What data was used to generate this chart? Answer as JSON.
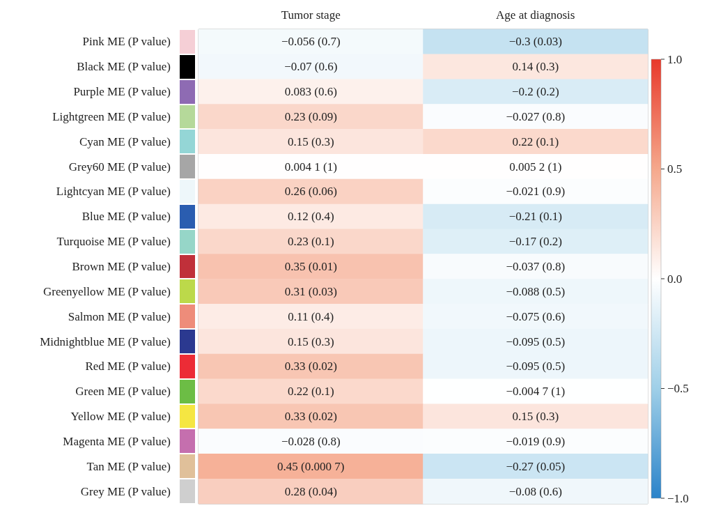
{
  "chart_data": {
    "type": "heatmap",
    "categories": [
      "Tumor stage",
      "Age at diagnosis"
    ],
    "y_categories": [
      "Pink ME (P value)",
      "Black ME (P value)",
      "Purple ME (P value)",
      "Lightgreen ME (P value)",
      "Cyan ME (P value)",
      "Grey60 ME (P value)",
      "Lightcyan ME (P value)",
      "Blue ME (P value)",
      "Turquoise ME (P value)",
      "Brown ME (P value)",
      "Greenyellow ME (P value)",
      "Salmon ME (P value)",
      "Midnightblue ME (P value)",
      "Red ME (P value)",
      "Green ME (P value)",
      "Yellow ME (P value)",
      "Magenta ME (P value)",
      "Tan ME (P value)",
      "Grey ME (P value)"
    ],
    "colors": [
      "#f5cfd6",
      "#000000",
      "#8e6bb3",
      "#b5d99a",
      "#94d6d6",
      "#a6a6a6",
      "#eef7fa",
      "#2a5db0",
      "#96d6c8",
      "#c0303a",
      "#bcd94a",
      "#ee8c7a",
      "#2b3990",
      "#ec2c36",
      "#6cbd45",
      "#f5e642",
      "#c56fae",
      "#e0c09a",
      "#cfcfcf"
    ],
    "cells": [
      [
        -0.056,
        -0.3
      ],
      [
        -0.07,
        0.14
      ],
      [
        0.083,
        -0.2
      ],
      [
        0.23,
        -0.027
      ],
      [
        0.15,
        0.22
      ],
      [
        0.0041,
        0.0052
      ],
      [
        0.26,
        -0.021
      ],
      [
        0.12,
        -0.21
      ],
      [
        0.23,
        -0.17
      ],
      [
        0.35,
        -0.037
      ],
      [
        0.31,
        -0.088
      ],
      [
        0.11,
        -0.075
      ],
      [
        0.15,
        -0.095
      ],
      [
        0.33,
        -0.095
      ],
      [
        0.22,
        -0.0047
      ],
      [
        0.33,
        0.15
      ],
      [
        -0.028,
        -0.019
      ],
      [
        0.45,
        -0.27
      ],
      [
        0.28,
        -0.08
      ]
    ],
    "cell_labels": [
      [
        "−0.056 (0.7)",
        "−0.3 (0.03)"
      ],
      [
        "−0.07 (0.6)",
        "0.14 (0.3)"
      ],
      [
        "0.083 (0.6)",
        "−0.2 (0.2)"
      ],
      [
        "0.23 (0.09)",
        "−0.027 (0.8)"
      ],
      [
        "0.15 (0.3)",
        "0.22 (0.1)"
      ],
      [
        "0.004 1 (1)",
        "0.005 2 (1)"
      ],
      [
        "0.26 (0.06)",
        "−0.021 (0.9)"
      ],
      [
        "0.12 (0.4)",
        "−0.21 (0.1)"
      ],
      [
        "0.23 (0.1)",
        "−0.17 (0.2)"
      ],
      [
        "0.35 (0.01)",
        "−0.037 (0.8)"
      ],
      [
        "0.31 (0.03)",
        "−0.088 (0.5)"
      ],
      [
        "0.11 (0.4)",
        "−0.075 (0.6)"
      ],
      [
        "0.15 (0.3)",
        "−0.095 (0.5)"
      ],
      [
        "0.33 (0.02)",
        "−0.095 (0.5)"
      ],
      [
        "0.22 (0.1)",
        "−0.004 7 (1)"
      ],
      [
        "0.33 (0.02)",
        "0.15 (0.3)"
      ],
      [
        "−0.028 (0.8)",
        "−0.019 (0.9)"
      ],
      [
        "0.45 (0.000 7)",
        "−0.27 (0.05)"
      ],
      [
        "0.28 (0.04)",
        "−0.08 (0.6)"
      ]
    ],
    "clim": [
      -1,
      1
    ],
    "cticks": [
      {
        "value": 1,
        "label": "1.0"
      },
      {
        "value": 0.5,
        "label": "0.5"
      },
      {
        "value": 0,
        "label": "0.0"
      },
      {
        "value": -0.5,
        "label": "−0.5"
      },
      {
        "value": -1,
        "label": "−1.0"
      }
    ]
  }
}
